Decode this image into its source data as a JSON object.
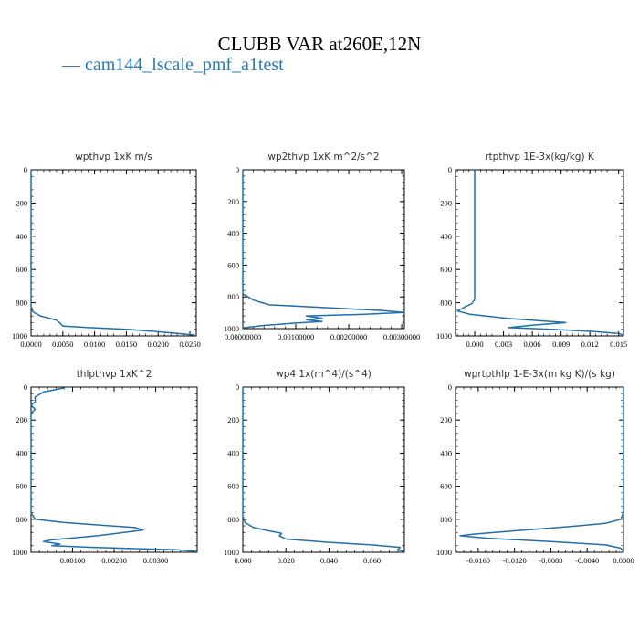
{
  "figure": {
    "title": "CLUBB VAR at260E,12N",
    "legend_label": "cam144_lscale_pmf_a1test",
    "series_color": "#1f6fad"
  },
  "chart_data": [
    {
      "type": "line",
      "title": "wpthvp  1xK m/s",
      "xlim": [
        0,
        0.026
      ],
      "ylim": [
        1000,
        0
      ],
      "x_ticks": [
        "0.0000",
        "0.0050",
        "0.0100",
        "0.0150",
        "0.0200",
        "0.0250"
      ],
      "x_tick_values": [
        0,
        0.005,
        0.01,
        0.015,
        0.02,
        0.025
      ],
      "y_ticks": [
        "0",
        "200",
        "400",
        "600",
        "800",
        "1000"
      ],
      "y_tick_values": [
        0,
        200,
        400,
        600,
        800,
        1000
      ],
      "points": [
        [
          0,
          0
        ],
        [
          0,
          700
        ],
        [
          0,
          820
        ],
        [
          0.0003,
          855
        ],
        [
          0.0015,
          880
        ],
        [
          0.004,
          905
        ],
        [
          0.0045,
          920
        ],
        [
          0.005,
          940
        ],
        [
          0.009,
          950
        ],
        [
          0.015,
          960
        ],
        [
          0.02,
          975
        ],
        [
          0.023,
          985
        ],
        [
          0.0258,
          995
        ]
      ]
    },
    {
      "type": "line",
      "title": "wp2thvp  1xK m^2/s^2",
      "xlim": [
        0,
        0.00305
      ],
      "ylim": [
        1000,
        0
      ],
      "x_ticks": [
        "0.00000000",
        "0.00100000",
        "0.00200000",
        "0.00300000"
      ],
      "x_tick_values": [
        0,
        0.001,
        0.002,
        0.003
      ],
      "y_ticks": [
        "0",
        "200",
        "400",
        "600",
        "800",
        "1000"
      ],
      "y_tick_values": [
        0,
        200,
        400,
        600,
        800,
        1000
      ],
      "points": [
        [
          0,
          0
        ],
        [
          0,
          780
        ],
        [
          0.0002,
          820
        ],
        [
          0.0005,
          850
        ],
        [
          0.0017,
          870
        ],
        [
          0.0026,
          885
        ],
        [
          0.00305,
          898
        ],
        [
          0.0023,
          910
        ],
        [
          0.0012,
          920
        ],
        [
          0.0015,
          935
        ],
        [
          0.0012,
          945
        ],
        [
          0.0015,
          955
        ],
        [
          0.001,
          965
        ],
        [
          0.0004,
          980
        ],
        [
          0,
          995
        ]
      ]
    },
    {
      "type": "line",
      "title": "rtpthvp  1E-3x(kg/kg) K",
      "xlim": [
        -0.002,
        0.0155
      ],
      "ylim": [
        1000,
        0
      ],
      "x_ticks": [
        "0.000",
        "0.003",
        "0.006",
        "0.009",
        "0.012",
        "0.015"
      ],
      "x_tick_values": [
        0,
        0.003,
        0.006,
        0.009,
        0.012,
        0.015
      ],
      "y_ticks": [
        "0",
        "200",
        "400",
        "600",
        "800",
        "1000"
      ],
      "y_tick_values": [
        0,
        200,
        400,
        600,
        800,
        1000
      ],
      "points": [
        [
          0,
          0
        ],
        [
          0,
          600
        ],
        [
          0,
          780
        ],
        [
          -0.0003,
          805
        ],
        [
          -0.001,
          825
        ],
        [
          -0.0018,
          850
        ],
        [
          -0.0005,
          870
        ],
        [
          0.0035,
          895
        ],
        [
          0.0095,
          920
        ],
        [
          0.006,
          935
        ],
        [
          0.0035,
          950
        ],
        [
          0.008,
          960
        ],
        [
          0.012,
          972
        ],
        [
          0.015,
          985
        ],
        [
          0.0155,
          995
        ]
      ]
    },
    {
      "type": "line",
      "title": "thlpthvp  1xK^2",
      "xlim": [
        0,
        0.004
      ],
      "ylim": [
        1000,
        0
      ],
      "x_ticks": [
        "0.00100",
        "0.00200",
        "0.00300"
      ],
      "x_tick_values": [
        0.001,
        0.002,
        0.003
      ],
      "y_ticks": [
        "0",
        "200",
        "400",
        "600",
        "800",
        "1000"
      ],
      "y_tick_values": [
        0,
        200,
        400,
        600,
        800,
        1000
      ],
      "points": [
        [
          0.0008,
          5
        ],
        [
          0.0003,
          30
        ],
        [
          0.0001,
          60
        ],
        [
          0.0001,
          90
        ],
        [
          0,
          110
        ],
        [
          0.0001,
          135
        ],
        [
          0,
          160
        ],
        [
          0,
          500
        ],
        [
          0,
          760
        ],
        [
          0.0001,
          800
        ],
        [
          0.0008,
          820
        ],
        [
          0.0025,
          850
        ],
        [
          0.0027,
          865
        ],
        [
          0.0016,
          900
        ],
        [
          0.0005,
          925
        ],
        [
          0.0003,
          935
        ],
        [
          0.0007,
          950
        ],
        [
          0.0005,
          960
        ],
        [
          0.0015,
          970
        ],
        [
          0.0035,
          985
        ],
        [
          0.004,
          995
        ]
      ]
    },
    {
      "type": "line",
      "title": "wp4  1x(m^4)/(s^4)",
      "xlim": [
        0,
        0.075
      ],
      "ylim": [
        1000,
        0
      ],
      "x_ticks": [
        "0.000",
        "0.020",
        "0.040",
        "0.060"
      ],
      "x_tick_values": [
        0,
        0.02,
        0.04,
        0.06
      ],
      "y_ticks": [
        "0",
        "200",
        "400",
        "600",
        "800",
        "1000"
      ],
      "y_tick_values": [
        0,
        200,
        400,
        600,
        800,
        1000
      ],
      "points": [
        [
          0,
          0
        ],
        [
          0,
          780
        ],
        [
          0.001,
          820
        ],
        [
          0.005,
          850
        ],
        [
          0.012,
          870
        ],
        [
          0.018,
          885
        ],
        [
          0.017,
          900
        ],
        [
          0.02,
          920
        ],
        [
          0.04,
          940
        ],
        [
          0.06,
          955
        ],
        [
          0.073,
          970
        ],
        [
          0.072,
          985
        ],
        [
          0.075,
          995
        ]
      ]
    },
    {
      "type": "line",
      "title": "wprtpthlp  1-E-3x(m kg K)/(s kg)",
      "xlim": [
        -0.0185,
        0
      ],
      "ylim": [
        1000,
        0
      ],
      "x_ticks": [
        "-0.0160",
        "-0.0120",
        "-0.0080",
        "-0.0040",
        "0.0000"
      ],
      "x_tick_values": [
        -0.016,
        -0.012,
        -0.008,
        -0.004,
        0
      ],
      "y_ticks": [
        "0",
        "200",
        "400",
        "600",
        "800",
        "1000"
      ],
      "y_tick_values": [
        0,
        200,
        400,
        600,
        800,
        1000
      ],
      "points": [
        [
          0,
          0
        ],
        [
          0,
          760
        ],
        [
          -0.0003,
          800
        ],
        [
          -0.002,
          825
        ],
        [
          -0.006,
          845
        ],
        [
          -0.012,
          870
        ],
        [
          -0.0165,
          890
        ],
        [
          -0.018,
          900
        ],
        [
          -0.015,
          915
        ],
        [
          -0.008,
          935
        ],
        [
          -0.002,
          955
        ],
        [
          -0.0003,
          975
        ],
        [
          0,
          995
        ]
      ]
    }
  ]
}
